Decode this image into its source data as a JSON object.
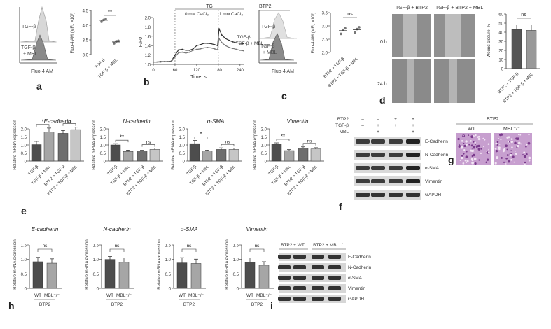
{
  "panels": {
    "a": "a",
    "b": "b",
    "c": "c",
    "d": "d",
    "e": "e",
    "f": "f",
    "g": "g",
    "h": "h",
    "i": "i"
  },
  "a": {
    "hist_labels": [
      "TGF-β",
      "TGF-β + MBL"
    ],
    "xlabel": "Fluo-4 AM",
    "ylabel": "Fluo-4 AM (MFI, ×10³)",
    "sig": "**",
    "chart_data": {
      "type": "scatter",
      "categories": [
        "TGF-β",
        "TGF-β + MBL"
      ],
      "values": [
        4.17,
        3.43
      ],
      "ylim": [
        3.0,
        4.5
      ],
      "yticks": [
        "3.0",
        "3.5",
        "4.0",
        "4.5"
      ],
      "points": [
        [
          4.12,
          4.18,
          4.21
        ],
        [
          3.38,
          3.45,
          3.47
        ]
      ]
    }
  },
  "b": {
    "top": "TG",
    "seg1": "0 mм CaCl₂",
    "seg2": "1 mм CaCl₂",
    "xlabel": "Time, s",
    "ylabel": "F/F0",
    "xticks": [
      "0",
      "60",
      "120",
      "180",
      "240"
    ],
    "yticks": [
      "1.0",
      "1.2",
      "1.4",
      "1.6",
      "1.8",
      "2.0"
    ],
    "series_labels": [
      "TGF-β",
      "TGF-β + MBL"
    ],
    "chart_data": {
      "type": "line",
      "x": [
        0,
        10,
        20,
        30,
        40,
        50,
        60,
        70,
        80,
        90,
        100,
        110,
        120,
        130,
        140,
        150,
        160,
        170,
        178,
        182,
        190,
        200,
        210,
        220,
        230,
        240,
        250
      ],
      "series": [
        {
          "name": "TGF-β",
          "values": [
            1.05,
            1.05,
            1.06,
            1.06,
            1.06,
            1.07,
            1.2,
            1.31,
            1.32,
            1.3,
            1.3,
            1.33,
            1.4,
            1.42,
            1.45,
            1.45,
            1.44,
            1.42,
            1.4,
            1.76,
            1.62,
            1.55,
            1.51,
            1.48,
            1.46,
            1.45,
            1.44
          ]
        },
        {
          "name": "TGF-β + MBL",
          "values": [
            1.05,
            1.05,
            1.05,
            1.06,
            1.06,
            1.06,
            1.16,
            1.25,
            1.26,
            1.24,
            1.26,
            1.3,
            1.32,
            1.33,
            1.35,
            1.36,
            1.35,
            1.33,
            1.31,
            1.55,
            1.46,
            1.4,
            1.36,
            1.34,
            1.32,
            1.3,
            1.29
          ]
        }
      ],
      "xlim": [
        0,
        250
      ],
      "ylim": [
        1.0,
        2.0
      ]
    }
  },
  "c": {
    "hist_labels": [
      "BTP2",
      "TGF-β",
      "TGF-β + MBL"
    ],
    "xlabel": "Fluo-4 AM",
    "ylabel": "Fluo-4 AM (MFI, ×10³)",
    "sig": "ns",
    "chart_data": {
      "type": "scatter",
      "categories": [
        "BTP2 + TGF-β",
        "BTP2 + TGF-β + MBL"
      ],
      "values": [
        2.82,
        2.86
      ],
      "ylim": [
        2.0,
        3.5
      ],
      "yticks": [
        "2.0",
        "2.5",
        "3.0",
        "3.5"
      ],
      "points": [
        [
          2.7,
          2.85,
          2.91
        ],
        [
          2.75,
          2.88,
          2.95
        ]
      ]
    }
  },
  "d": {
    "col1": "TGF-β + BTP2",
    "col2": "TGF-β + BTP2 + MBL",
    "row1": "0 h",
    "row2": "24 h",
    "ylabel": "Wound closure, %",
    "sig": "ns",
    "chart_data": {
      "type": "bar",
      "categories": [
        "BTP2 + TGF-β",
        "BTP2 + TGF-β + MBL"
      ],
      "values": [
        43,
        42
      ],
      "errors": [
        5,
        6
      ],
      "ylim": [
        0,
        60
      ],
      "yticks": [
        "0",
        "10",
        "20",
        "30",
        "40",
        "50",
        "60"
      ]
    }
  },
  "e": {
    "ylabel": "Relative mRNA expression",
    "yticks": [
      "0",
      "0.5",
      "1.0",
      "1.5",
      "2.0"
    ],
    "categories": [
      "TGF-β",
      "TGF-β + MBL",
      "BTP2 + TGF-β",
      "BTP2 + TGF-β + MBL"
    ],
    "charts": [
      {
        "title": "E-cadherin",
        "sig1": "*",
        "sig2": "ns",
        "values": [
          1.02,
          1.8,
          1.72,
          1.95
        ],
        "errors": [
          0.2,
          0.25,
          0.18,
          0.15
        ]
      },
      {
        "title": "N-cadherin",
        "sig1": "**",
        "sig2": "ns",
        "values": [
          1.0,
          0.6,
          0.62,
          0.72
        ],
        "errors": [
          0.08,
          0.08,
          0.05,
          0.08
        ]
      },
      {
        "title": "α-SMA",
        "sig1": "*",
        "sig2": "ns",
        "values": [
          1.08,
          0.62,
          0.72,
          0.72
        ],
        "errors": [
          0.2,
          0.06,
          0.1,
          0.08
        ]
      },
      {
        "title": "Vimentin",
        "sig1": "**",
        "sig2": "ns",
        "values": [
          1.05,
          0.65,
          0.8,
          0.75
        ],
        "errors": [
          0.08,
          0.06,
          0.08,
          0.08
        ]
      }
    ]
  },
  "f": {
    "rows": [
      "BTP2",
      "TGF-β",
      "MBL"
    ],
    "signs": [
      [
        "–",
        "–",
        "+",
        "+"
      ],
      [
        "–",
        "+",
        "+",
        "+"
      ],
      [
        "–",
        "+",
        "–",
        "+"
      ]
    ],
    "bands": [
      "E-Cadherin",
      "N-Cadherin",
      "α-SMA",
      "Vimentin",
      "GAPDH"
    ]
  },
  "g": {
    "title": "BTP2",
    "col1": "WT",
    "col2": "MBL⁻/⁻"
  },
  "h": {
    "ylabel": "Relative mRNA expression",
    "yticks": [
      "0",
      "0.5",
      "1.0",
      "1.5"
    ],
    "categories": [
      "WT",
      "MBL⁻/⁻"
    ],
    "group": "BTP2",
    "charts": [
      {
        "title": "E-cadherin",
        "sig": "ns",
        "values": [
          0.92,
          0.87
        ],
        "errors": [
          0.15,
          0.15
        ]
      },
      {
        "title": "N-cadherin",
        "sig": "ns",
        "values": [
          1.0,
          0.9
        ],
        "errors": [
          0.1,
          0.15
        ]
      },
      {
        "title": "α-SMA",
        "sig": "ns",
        "values": [
          0.88,
          0.86
        ],
        "errors": [
          0.18,
          0.15
        ]
      },
      {
        "title": "Vimentin",
        "sig": "ns",
        "values": [
          0.9,
          0.8
        ],
        "errors": [
          0.15,
          0.12
        ]
      }
    ]
  },
  "i": {
    "group1": "BTP2 + WT",
    "group2": "BTP2 + MBL⁻/⁻",
    "bands": [
      "E-Cadherin",
      "N-Cadherin",
      "α-SMA",
      "Vimentin",
      "GAPDH"
    ]
  }
}
